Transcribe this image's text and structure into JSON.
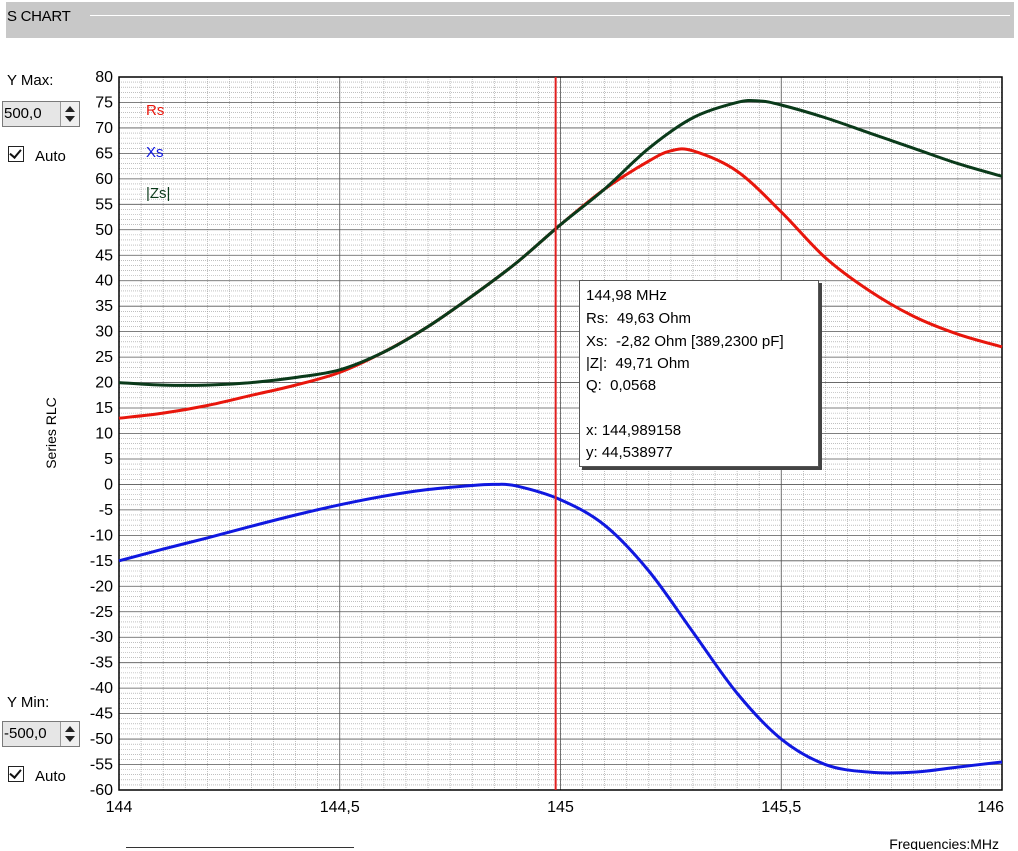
{
  "window": {
    "title": "S CHART"
  },
  "controls": {
    "ymax_label": "Y Max:",
    "ymax_value": "500,0",
    "ymax_auto_label": "Auto",
    "ymax_auto_checked": true,
    "ymin_label": "Y Min:",
    "ymin_value": "-500,0",
    "ymin_auto_label": "Auto",
    "ymin_auto_checked": true
  },
  "tooltip": {
    "freq": "144,98 MHz",
    "rs": "Rs:  49,63 Ohm",
    "xs": "Xs:  -2,82 Ohm [389,2300 pF]",
    "z": "|Z|:  49,71 Ohm",
    "q": "Q:  0,0568",
    "x": "x: 144,989158",
    "y": "y: 44,538977"
  },
  "colors": {
    "rs": "#e8160c",
    "xs": "#1018e0",
    "zs": "#0a3a1a",
    "cursor": "#e02020"
  },
  "chart_data": {
    "type": "line",
    "ylabel": "Series RLC",
    "xlabel": "Frequencies:MHz",
    "xlim": [
      144,
      146
    ],
    "ylim": [
      -60,
      80
    ],
    "x_ticks": [
      "144",
      "144,5",
      "145",
      "145,5",
      "146"
    ],
    "y_ticks": [
      "80",
      "75",
      "70",
      "65",
      "60",
      "55",
      "50",
      "45",
      "40",
      "35",
      "30",
      "25",
      "20",
      "15",
      "10",
      "5",
      "0",
      "-5",
      "-10",
      "-15",
      "-20",
      "-25",
      "-30",
      "-35",
      "-40",
      "-45",
      "-50",
      "-55",
      "-60"
    ],
    "legend_position": "top-left",
    "grid": true,
    "cursor_x": 144.989,
    "series": [
      {
        "name": "Rs",
        "x": [
          144,
          144.1,
          144.2,
          144.3,
          144.4,
          144.5,
          144.6,
          144.7,
          144.8,
          144.9,
          145,
          145.1,
          145.2,
          145.25,
          145.3,
          145.4,
          145.5,
          145.6,
          145.7,
          145.8,
          145.9,
          146
        ],
        "y": [
          13,
          14,
          15.5,
          17.5,
          19.5,
          22,
          26,
          31,
          37,
          43.5,
          51,
          58,
          63.5,
          65.5,
          65.5,
          61.5,
          53.5,
          44.5,
          38,
          33,
          29.5,
          27
        ]
      },
      {
        "name": "Xs",
        "x": [
          144,
          144.1,
          144.2,
          144.3,
          144.4,
          144.5,
          144.6,
          144.7,
          144.8,
          144.85,
          144.9,
          145,
          145.1,
          145.2,
          145.3,
          145.4,
          145.5,
          145.6,
          145.7,
          145.8,
          145.9,
          146
        ],
        "y": [
          -15,
          -12.7,
          -10.5,
          -8.2,
          -6,
          -4,
          -2.3,
          -1,
          -0.2,
          0,
          -0.3,
          -3,
          -8,
          -17,
          -29,
          -41,
          -50,
          -55,
          -56.5,
          -56.5,
          -55.5,
          -54.5
        ]
      },
      {
        "name": "|Zs|",
        "x": [
          144,
          144.1,
          144.2,
          144.3,
          144.4,
          144.5,
          144.6,
          144.7,
          144.8,
          144.9,
          145,
          145.1,
          145.2,
          145.3,
          145.4,
          145.45,
          145.5,
          145.6,
          145.7,
          145.8,
          145.9,
          146
        ],
        "y": [
          20,
          19.5,
          19.5,
          20,
          21,
          22.5,
          26,
          31,
          37,
          43.5,
          51,
          58,
          66,
          72,
          75,
          75.3,
          74.5,
          72,
          69,
          66,
          63,
          60.5
        ]
      }
    ]
  }
}
